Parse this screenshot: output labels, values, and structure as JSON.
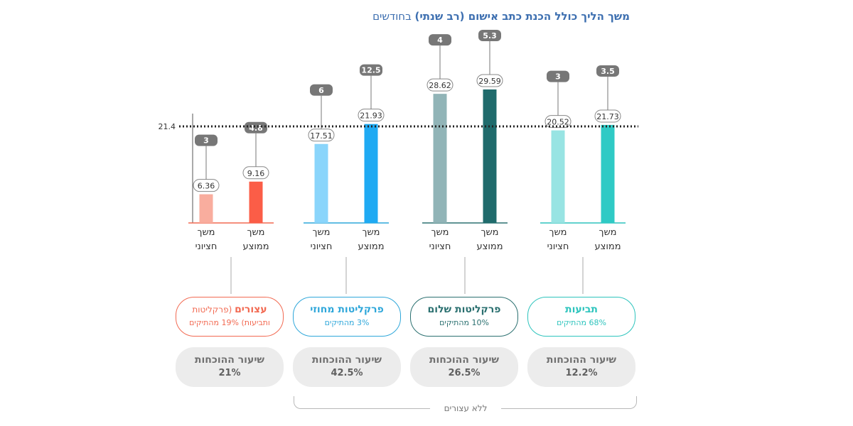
{
  "title": {
    "bold": "משך הליך כולל הכנת כתב אישום (רב שנתי)",
    "rest": " בחודשים"
  },
  "chart_data": {
    "type": "bar",
    "title": "משך הליך כולל הכנת כתב אישום (רב שנתי) בחודשים",
    "reference_line": {
      "value": 21.4,
      "label": "21.4"
    },
    "ylim": [
      0,
      33
    ],
    "bar_labels": {
      "median": [
        "משך",
        "חציוני"
      ],
      "average": [
        "משך",
        "ממוצע"
      ]
    },
    "categories": [
      {
        "name": "עצורים",
        "name_note": "(פרקליטות",
        "share": "ותביעות) 19% מהתיקים",
        "color": "#f26a52",
        "median": 6.36,
        "median_cases": "3",
        "median_color": "#f9ad9e",
        "average": 9.16,
        "average_cases": "4.8",
        "average_color": "#fb5d47",
        "conviction_label": "שיעור ההוכחות",
        "conviction_rate": "21%"
      },
      {
        "name": "פרקליטות מחוזי",
        "name_note": "",
        "share": "3% מהתיקים",
        "color": "#2fa7da",
        "median": 17.51,
        "median_cases": "6",
        "median_color": "#8ad5fb",
        "average": 21.93,
        "average_cases": "12.5",
        "average_color": "#1faaf3",
        "conviction_label": "שיעור ההוכחות",
        "conviction_rate": "42.5%"
      },
      {
        "name": "פרקליטות שלום",
        "name_note": "",
        "share": "10% מהתיקים",
        "color": "#2b7070",
        "median": 28.62,
        "median_cases": "4",
        "median_color": "#91b4b7",
        "average": 29.59,
        "average_cases": "5.3",
        "average_color": "#206b6c",
        "conviction_label": "שיעור ההוכחות",
        "conviction_rate": "26.5%"
      },
      {
        "name": "תביעות",
        "name_note": "",
        "share": "68% מהתיקים",
        "color": "#2ec4bd",
        "median": 20.52,
        "median_cases": "3",
        "median_color": "#98e4e3",
        "average": 21.73,
        "average_cases": "3.5",
        "average_color": "#2fcac5",
        "conviction_label": "שיעור ההוכחות",
        "conviction_rate": "12.2%"
      }
    ],
    "bracket_label": "ללא עצורים"
  },
  "colors": {
    "title": "#3d6fb0",
    "cases_badge": "#777777",
    "rate_box": "#ececec"
  }
}
